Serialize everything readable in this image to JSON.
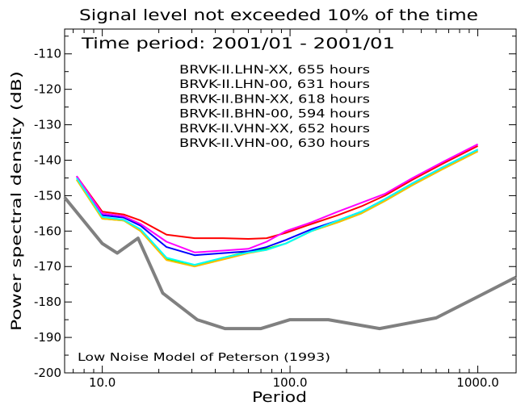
{
  "chart_data": {
    "type": "line",
    "title": "Signal level not exceeded 10% of the time",
    "subtitle": "Time period: 2001/01 - 2001/01",
    "xlabel": "Period",
    "ylabel": "Power spectral density (dB)",
    "xscale": "log",
    "xlim": [
      6.3,
      1600
    ],
    "ylim": [
      -200,
      -103
    ],
    "x_ticks": [
      "10.0",
      "100.0",
      "1000.0"
    ],
    "y_ticks": [
      "-110",
      "-120",
      "-130",
      "-140",
      "-150",
      "-160",
      "-170",
      "-180",
      "-190",
      "-200"
    ],
    "grid": false,
    "legend_position": "top-center",
    "series": [
      {
        "name": "BRVK-II.LHN-XX, 655 hours",
        "color": "#ff0000",
        "x": [
          7.3,
          10.0,
          13.0,
          16.0,
          22.0,
          31.0,
          44.0,
          60.0,
          75.0,
          95.0,
          130.0,
          180.0,
          240.0,
          320.0,
          450.0,
          650.0,
          1000.0
        ],
        "y": [
          -144.5,
          -154.5,
          -155.3,
          -157.0,
          -161.0,
          -162.0,
          -162.0,
          -162.2,
          -162.0,
          -160.5,
          -158.0,
          -155.5,
          -153.0,
          -150.0,
          -145.5,
          -141.0,
          -136.0
        ]
      },
      {
        "name": "BRVK-II.LHN-00, 631 hours",
        "color": "#00ff00",
        "x": [
          7.3,
          10.0,
          13.0,
          16.0,
          22.0,
          31.0,
          44.0,
          60.0,
          75.0,
          95.0,
          130.0,
          180.0,
          240.0,
          320.0,
          450.0,
          650.0,
          1000.0
        ],
        "y": [
          -145.5,
          -156.5,
          -157.0,
          -160.0,
          -168.0,
          -169.8,
          -167.5,
          -165.8,
          -165.0,
          -163.5,
          -160.0,
          -157.5,
          -155.0,
          -151.5,
          -147.0,
          -142.5,
          -137.5
        ]
      },
      {
        "name": "BRVK-II.BHN-XX, 618 hours",
        "color": "#0000ff",
        "x": [
          7.3,
          10.0,
          13.0,
          16.0,
          22.0,
          31.0,
          44.0,
          60.0,
          75.0,
          95.0,
          130.0,
          180.0,
          240.0,
          320.0,
          450.0,
          650.0,
          1000.0
        ],
        "y": [
          -144.5,
          -155.5,
          -156.2,
          -158.5,
          -164.5,
          -166.8,
          -166.2,
          -165.7,
          -164.5,
          -162.5,
          -159.5,
          -157.0,
          -154.5,
          -151.0,
          -146.5,
          -142.0,
          -137.0
        ]
      },
      {
        "name": "BRVK-II.BHN-00, 594 hours",
        "color": "#ffbe00",
        "x": [
          7.3,
          10.0,
          13.0,
          16.0,
          22.0,
          31.0,
          44.0,
          60.0,
          75.0,
          95.0,
          130.0,
          180.0,
          240.0,
          320.0,
          450.0,
          650.0,
          1000.0
        ],
        "y": [
          -145.5,
          -156.5,
          -157.0,
          -160.0,
          -168.2,
          -170.0,
          -168.0,
          -166.2,
          -165.3,
          -163.5,
          -160.0,
          -157.5,
          -155.0,
          -151.5,
          -147.0,
          -142.5,
          -137.5
        ]
      },
      {
        "name": "BRVK-II.VHN-XX, 652 hours",
        "color": "#ff00ff",
        "x": [
          7.3,
          10.0,
          13.0,
          16.0,
          22.0,
          31.0,
          44.0,
          60.0,
          75.0,
          95.0,
          130.0,
          180.0,
          240.0,
          320.0,
          450.0,
          650.0,
          1000.0
        ],
        "y": [
          -144.5,
          -155.0,
          -155.8,
          -158.0,
          -163.0,
          -166.0,
          -165.5,
          -165.0,
          -163.0,
          -160.0,
          -157.5,
          -154.5,
          -152.0,
          -149.5,
          -145.0,
          -140.5,
          -135.5
        ]
      },
      {
        "name": "BRVK-II.VHN-00, 630 hours",
        "color": "#00ffff",
        "x": [
          7.3,
          10.0,
          13.0,
          16.0,
          22.0,
          31.0,
          44.0,
          60.0,
          75.0,
          95.0,
          130.0,
          180.0,
          240.0,
          320.0,
          450.0,
          650.0,
          1000.0
        ],
        "y": [
          -145.0,
          -156.0,
          -156.8,
          -159.5,
          -167.5,
          -169.5,
          -167.5,
          -166.0,
          -165.3,
          -163.5,
          -160.0,
          -157.0,
          -154.5,
          -151.0,
          -146.5,
          -142.0,
          -137.0
        ]
      }
    ],
    "reference": {
      "label": "Low Noise Model of Peterson (1993)",
      "color": "#808080",
      "x": [
        6.3,
        10.0,
        12.0,
        15.5,
        21.0,
        32.0,
        45.0,
        70.0,
        100.0,
        160.0,
        300.0,
        600.0,
        1000.0,
        1600.0
      ],
      "y": [
        -150.5,
        -163.5,
        -166.2,
        -162.0,
        -177.5,
        -185.0,
        -187.5,
        -187.5,
        -185.0,
        -185.0,
        -187.5,
        -184.5,
        -178.5,
        -173.0
      ]
    }
  }
}
